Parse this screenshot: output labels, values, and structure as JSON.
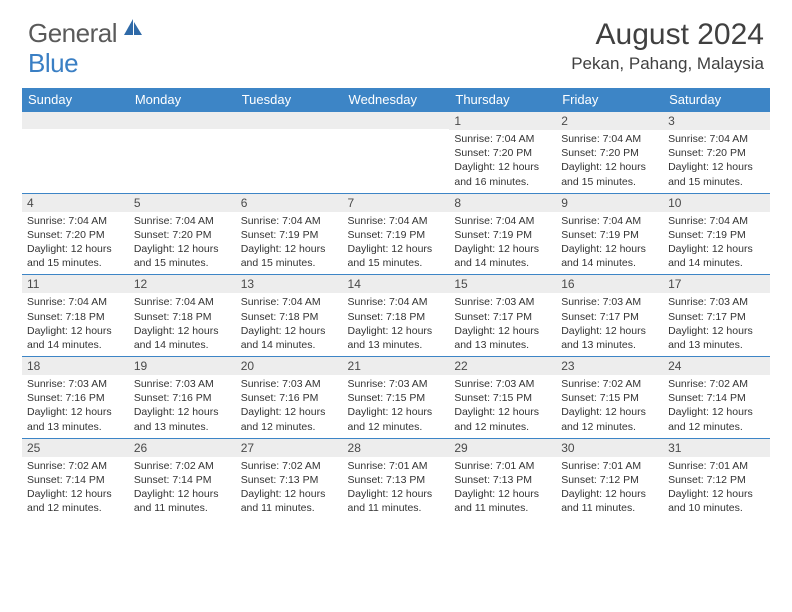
{
  "brand": {
    "general": "General",
    "blue": "Blue"
  },
  "title": "August 2024",
  "location": "Pekan, Pahang, Malaysia",
  "colors": {
    "header_bg": "#3d85c6",
    "header_text": "#ffffff",
    "daybar_bg": "#ededed",
    "border": "#3d85c6",
    "text": "#333333",
    "brand_gray": "#5a5a5a",
    "brand_blue": "#3a7fc4"
  },
  "dayNames": [
    "Sunday",
    "Monday",
    "Tuesday",
    "Wednesday",
    "Thursday",
    "Friday",
    "Saturday"
  ],
  "weeks": [
    [
      {
        "n": "",
        "sr": "",
        "ss": "",
        "dl": ""
      },
      {
        "n": "",
        "sr": "",
        "ss": "",
        "dl": ""
      },
      {
        "n": "",
        "sr": "",
        "ss": "",
        "dl": ""
      },
      {
        "n": "",
        "sr": "",
        "ss": "",
        "dl": ""
      },
      {
        "n": "1",
        "sr": "Sunrise: 7:04 AM",
        "ss": "Sunset: 7:20 PM",
        "dl": "Daylight: 12 hours and 16 minutes."
      },
      {
        "n": "2",
        "sr": "Sunrise: 7:04 AM",
        "ss": "Sunset: 7:20 PM",
        "dl": "Daylight: 12 hours and 15 minutes."
      },
      {
        "n": "3",
        "sr": "Sunrise: 7:04 AM",
        "ss": "Sunset: 7:20 PM",
        "dl": "Daylight: 12 hours and 15 minutes."
      }
    ],
    [
      {
        "n": "4",
        "sr": "Sunrise: 7:04 AM",
        "ss": "Sunset: 7:20 PM",
        "dl": "Daylight: 12 hours and 15 minutes."
      },
      {
        "n": "5",
        "sr": "Sunrise: 7:04 AM",
        "ss": "Sunset: 7:20 PM",
        "dl": "Daylight: 12 hours and 15 minutes."
      },
      {
        "n": "6",
        "sr": "Sunrise: 7:04 AM",
        "ss": "Sunset: 7:19 PM",
        "dl": "Daylight: 12 hours and 15 minutes."
      },
      {
        "n": "7",
        "sr": "Sunrise: 7:04 AM",
        "ss": "Sunset: 7:19 PM",
        "dl": "Daylight: 12 hours and 15 minutes."
      },
      {
        "n": "8",
        "sr": "Sunrise: 7:04 AM",
        "ss": "Sunset: 7:19 PM",
        "dl": "Daylight: 12 hours and 14 minutes."
      },
      {
        "n": "9",
        "sr": "Sunrise: 7:04 AM",
        "ss": "Sunset: 7:19 PM",
        "dl": "Daylight: 12 hours and 14 minutes."
      },
      {
        "n": "10",
        "sr": "Sunrise: 7:04 AM",
        "ss": "Sunset: 7:19 PM",
        "dl": "Daylight: 12 hours and 14 minutes."
      }
    ],
    [
      {
        "n": "11",
        "sr": "Sunrise: 7:04 AM",
        "ss": "Sunset: 7:18 PM",
        "dl": "Daylight: 12 hours and 14 minutes."
      },
      {
        "n": "12",
        "sr": "Sunrise: 7:04 AM",
        "ss": "Sunset: 7:18 PM",
        "dl": "Daylight: 12 hours and 14 minutes."
      },
      {
        "n": "13",
        "sr": "Sunrise: 7:04 AM",
        "ss": "Sunset: 7:18 PM",
        "dl": "Daylight: 12 hours and 14 minutes."
      },
      {
        "n": "14",
        "sr": "Sunrise: 7:04 AM",
        "ss": "Sunset: 7:18 PM",
        "dl": "Daylight: 12 hours and 13 minutes."
      },
      {
        "n": "15",
        "sr": "Sunrise: 7:03 AM",
        "ss": "Sunset: 7:17 PM",
        "dl": "Daylight: 12 hours and 13 minutes."
      },
      {
        "n": "16",
        "sr": "Sunrise: 7:03 AM",
        "ss": "Sunset: 7:17 PM",
        "dl": "Daylight: 12 hours and 13 minutes."
      },
      {
        "n": "17",
        "sr": "Sunrise: 7:03 AM",
        "ss": "Sunset: 7:17 PM",
        "dl": "Daylight: 12 hours and 13 minutes."
      }
    ],
    [
      {
        "n": "18",
        "sr": "Sunrise: 7:03 AM",
        "ss": "Sunset: 7:16 PM",
        "dl": "Daylight: 12 hours and 13 minutes."
      },
      {
        "n": "19",
        "sr": "Sunrise: 7:03 AM",
        "ss": "Sunset: 7:16 PM",
        "dl": "Daylight: 12 hours and 13 minutes."
      },
      {
        "n": "20",
        "sr": "Sunrise: 7:03 AM",
        "ss": "Sunset: 7:16 PM",
        "dl": "Daylight: 12 hours and 12 minutes."
      },
      {
        "n": "21",
        "sr": "Sunrise: 7:03 AM",
        "ss": "Sunset: 7:15 PM",
        "dl": "Daylight: 12 hours and 12 minutes."
      },
      {
        "n": "22",
        "sr": "Sunrise: 7:03 AM",
        "ss": "Sunset: 7:15 PM",
        "dl": "Daylight: 12 hours and 12 minutes."
      },
      {
        "n": "23",
        "sr": "Sunrise: 7:02 AM",
        "ss": "Sunset: 7:15 PM",
        "dl": "Daylight: 12 hours and 12 minutes."
      },
      {
        "n": "24",
        "sr": "Sunrise: 7:02 AM",
        "ss": "Sunset: 7:14 PM",
        "dl": "Daylight: 12 hours and 12 minutes."
      }
    ],
    [
      {
        "n": "25",
        "sr": "Sunrise: 7:02 AM",
        "ss": "Sunset: 7:14 PM",
        "dl": "Daylight: 12 hours and 12 minutes."
      },
      {
        "n": "26",
        "sr": "Sunrise: 7:02 AM",
        "ss": "Sunset: 7:14 PM",
        "dl": "Daylight: 12 hours and 11 minutes."
      },
      {
        "n": "27",
        "sr": "Sunrise: 7:02 AM",
        "ss": "Sunset: 7:13 PM",
        "dl": "Daylight: 12 hours and 11 minutes."
      },
      {
        "n": "28",
        "sr": "Sunrise: 7:01 AM",
        "ss": "Sunset: 7:13 PM",
        "dl": "Daylight: 12 hours and 11 minutes."
      },
      {
        "n": "29",
        "sr": "Sunrise: 7:01 AM",
        "ss": "Sunset: 7:13 PM",
        "dl": "Daylight: 12 hours and 11 minutes."
      },
      {
        "n": "30",
        "sr": "Sunrise: 7:01 AM",
        "ss": "Sunset: 7:12 PM",
        "dl": "Daylight: 12 hours and 11 minutes."
      },
      {
        "n": "31",
        "sr": "Sunrise: 7:01 AM",
        "ss": "Sunset: 7:12 PM",
        "dl": "Daylight: 12 hours and 10 minutes."
      }
    ]
  ]
}
